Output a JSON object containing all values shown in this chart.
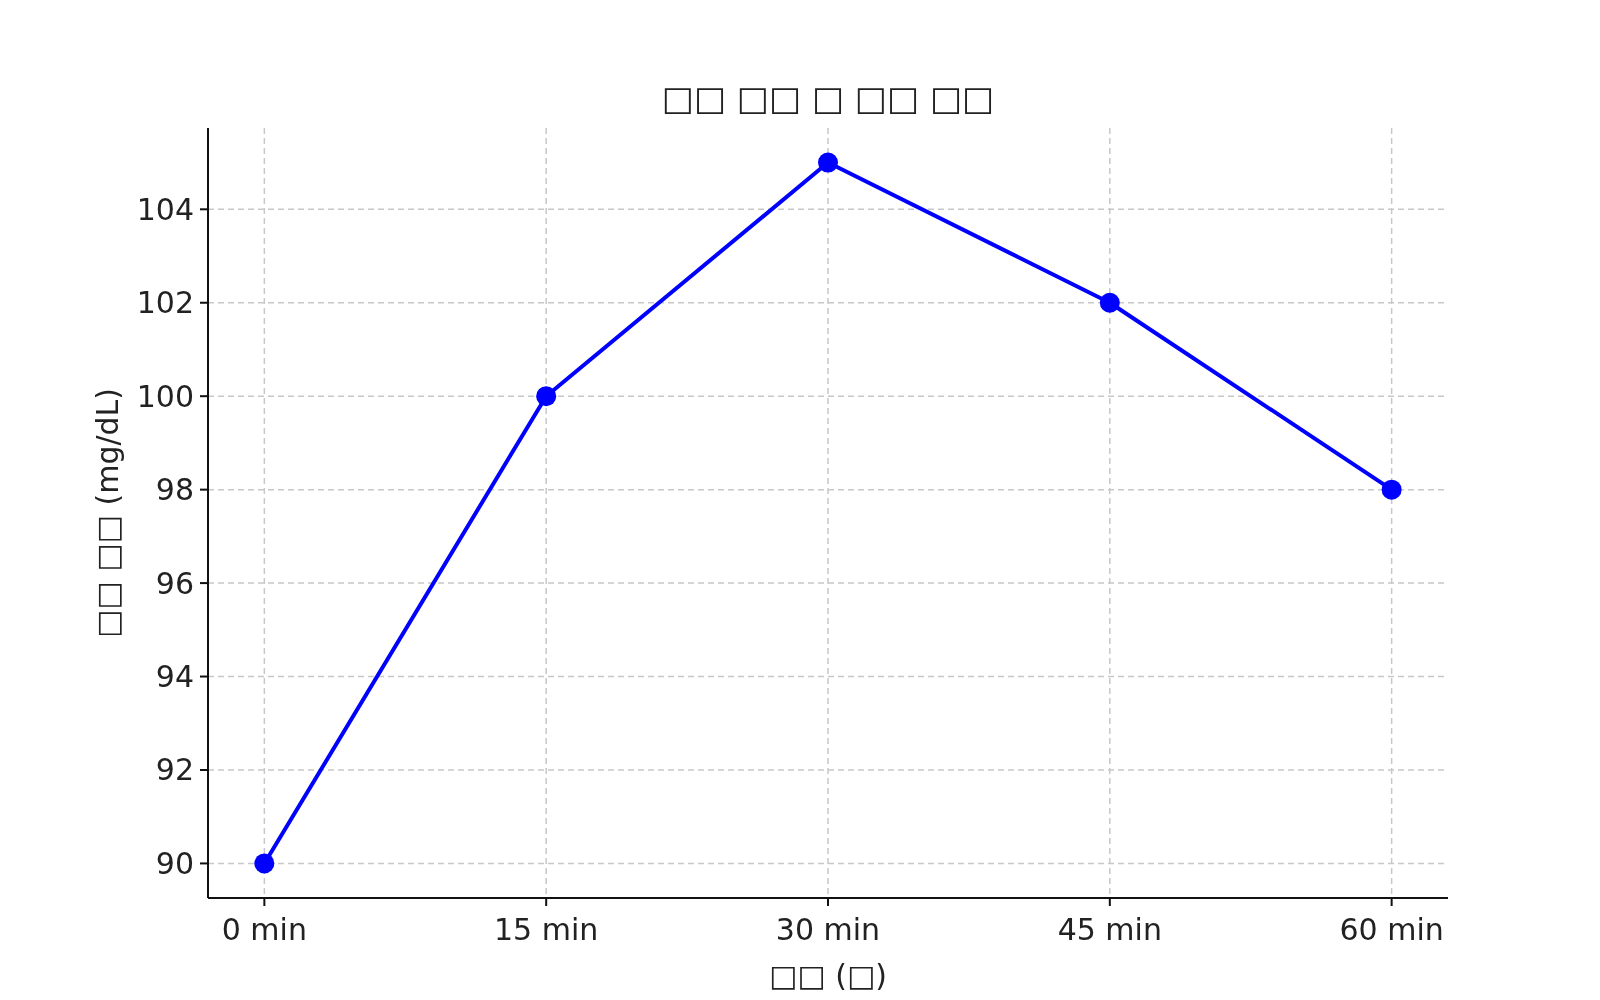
{
  "chart_data": {
    "type": "line",
    "title": "□□ □□ □ □□ □□",
    "xlabel": "□□ (□)",
    "ylabel": "□□ □□ (mg/dL)",
    "categories": [
      "0 min",
      "15 min",
      "30 min",
      "45 min",
      "60 min"
    ],
    "series": [
      {
        "color": "#0000ff",
        "values": [
          90,
          100,
          105,
          102,
          98
        ]
      }
    ],
    "ylim": [
      89.26,
      105.74
    ],
    "yticks": [
      90,
      92,
      94,
      96,
      98,
      100,
      102,
      104
    ],
    "grid": true,
    "marker": "circle",
    "line_style": "solid"
  }
}
